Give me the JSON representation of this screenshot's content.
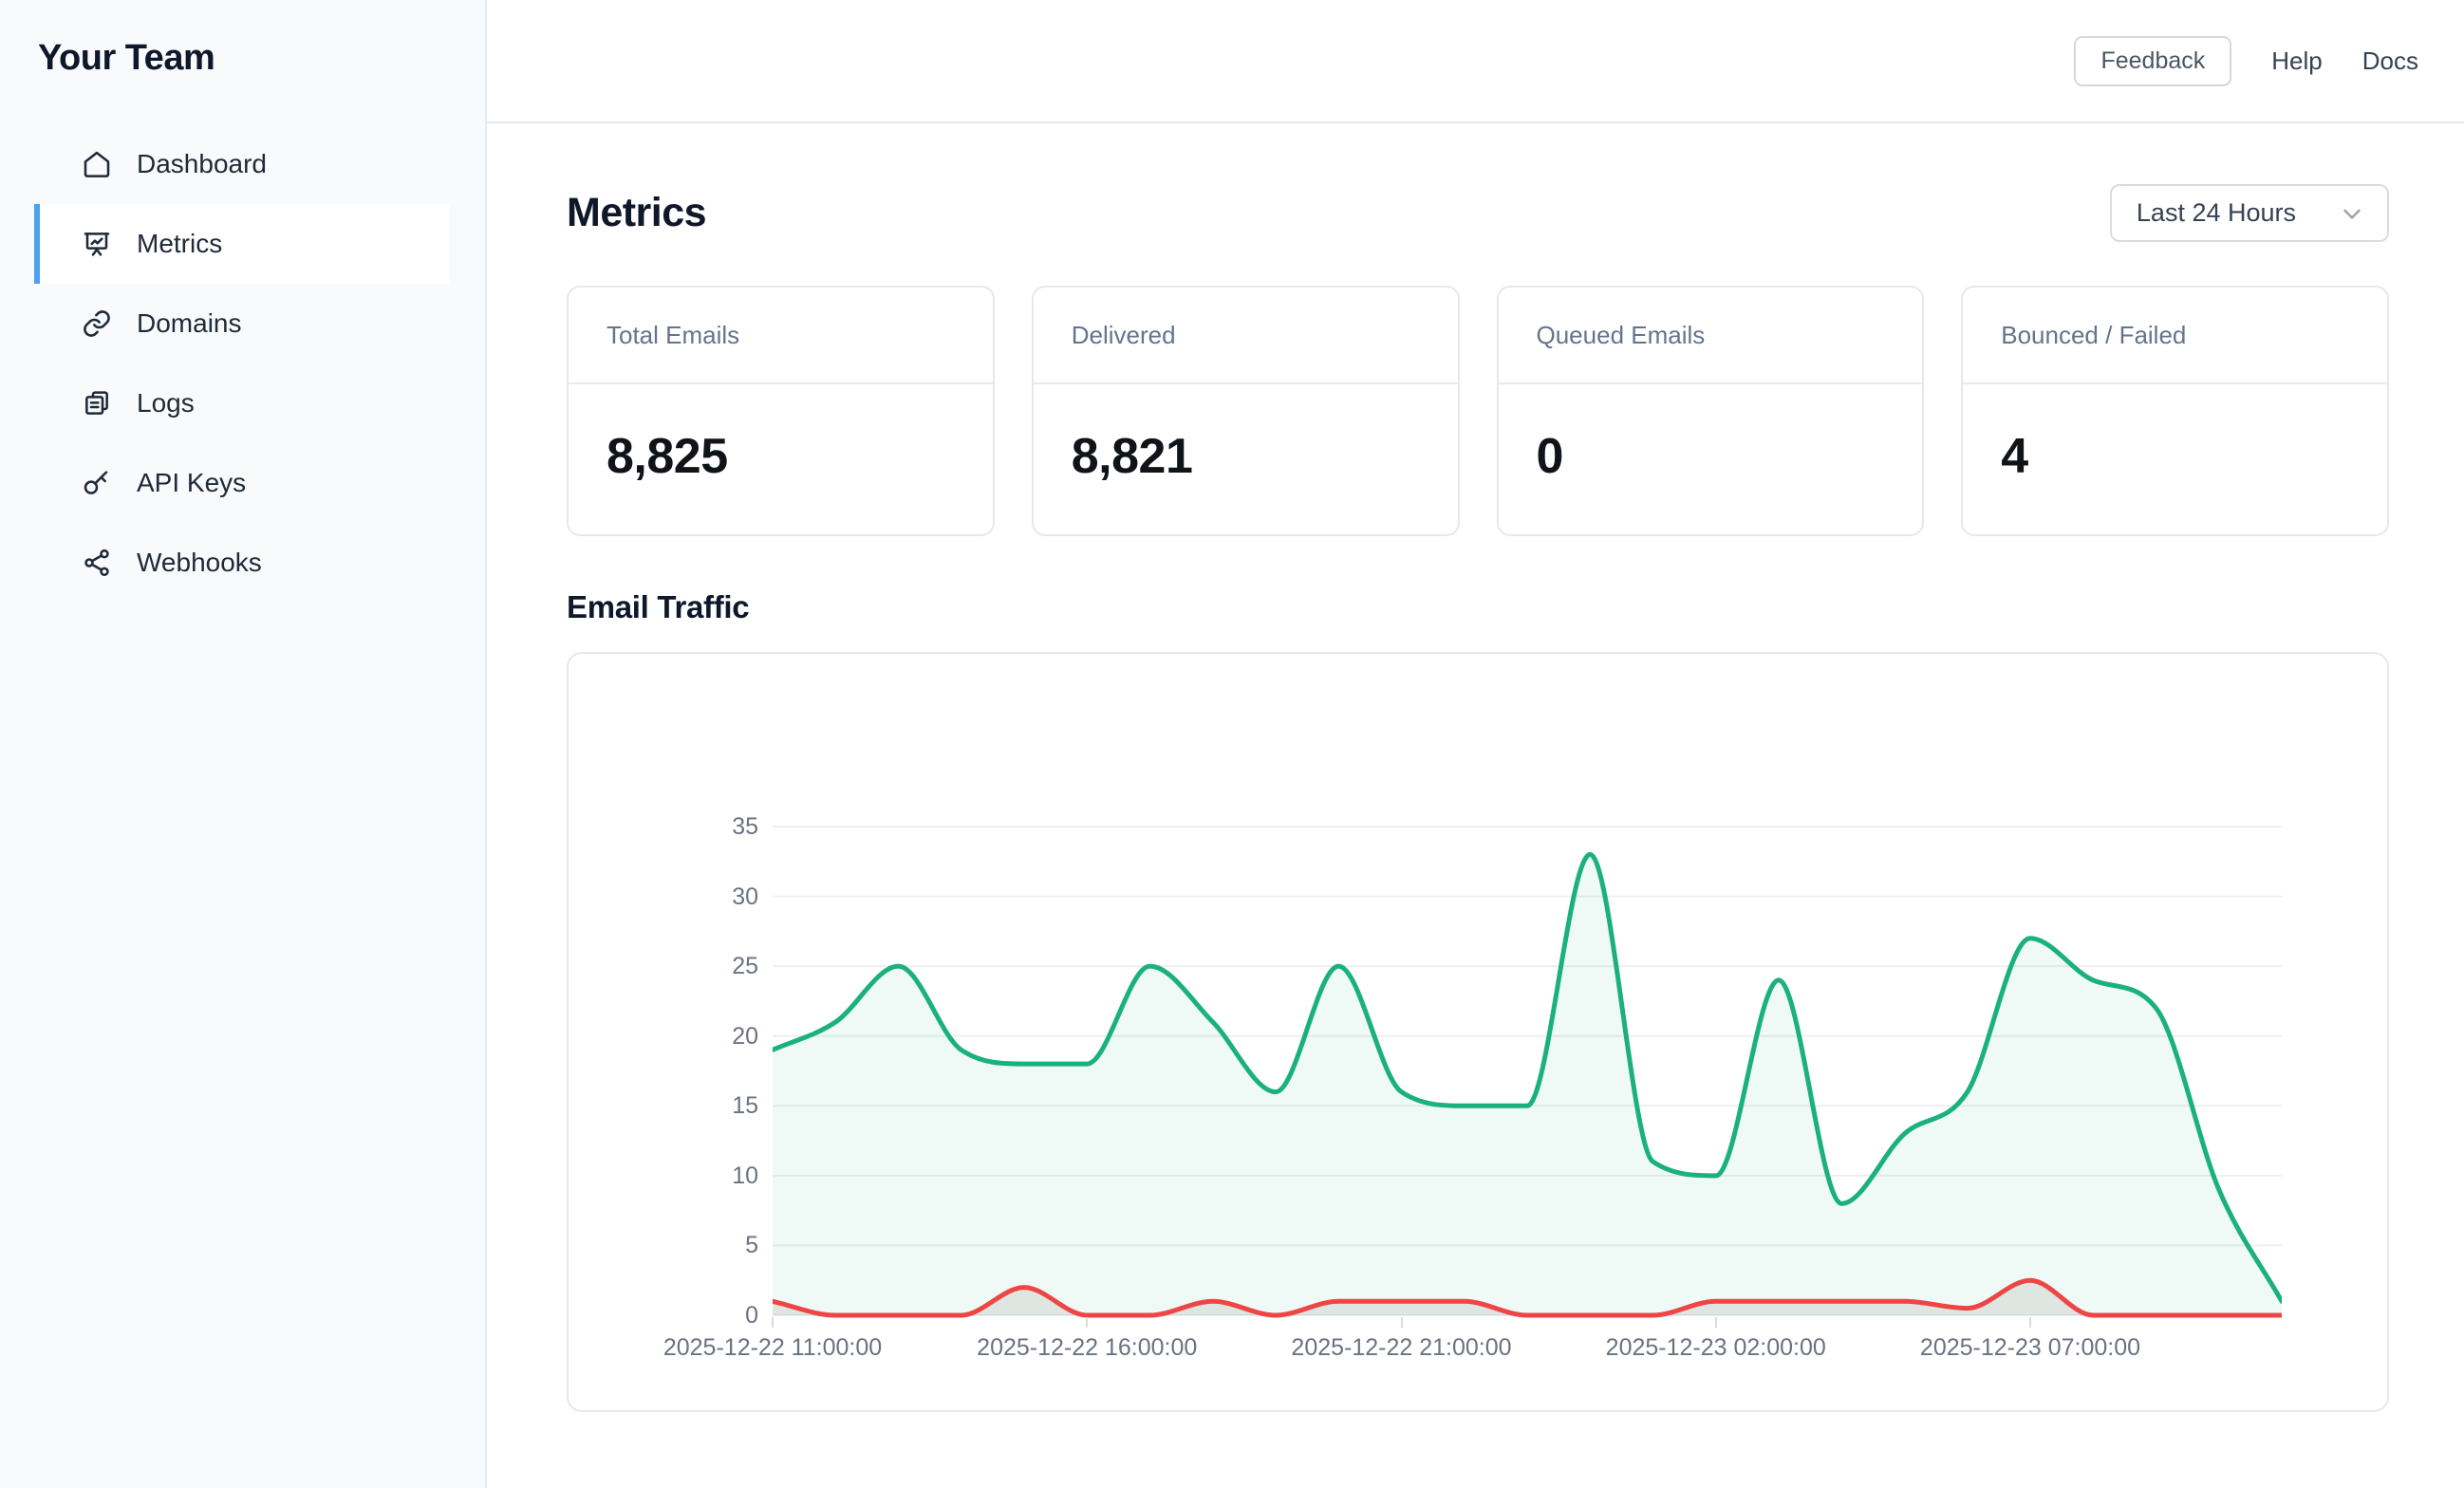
{
  "sidebar": {
    "team_name": "Your Team",
    "items": [
      {
        "label": "Dashboard",
        "icon": "home-icon"
      },
      {
        "label": "Metrics",
        "icon": "presentation-chart-icon"
      },
      {
        "label": "Domains",
        "icon": "link-icon"
      },
      {
        "label": "Logs",
        "icon": "logs-icon"
      },
      {
        "label": "API Keys",
        "icon": "key-icon"
      },
      {
        "label": "Webhooks",
        "icon": "share-icon"
      }
    ]
  },
  "topbar": {
    "feedback_label": "Feedback",
    "help_label": "Help",
    "docs_label": "Docs"
  },
  "metrics": {
    "title": "Metrics",
    "time_range": "Last 24 Hours"
  },
  "stats": [
    {
      "label": "Total Emails",
      "value": "8,825"
    },
    {
      "label": "Delivered",
      "value": "8,821"
    },
    {
      "label": "Queued Emails",
      "value": "0"
    },
    {
      "label": "Bounced / Failed",
      "value": "4"
    }
  ],
  "chart_section": {
    "title": "Email Traffic"
  },
  "chart_data": {
    "type": "line",
    "title": "Email Traffic",
    "x_unit": "hour",
    "x_start": "2025-12-22 11:00:00",
    "x_end": "2025-12-23 11:00:00",
    "x_tick_hours": [
      0,
      5,
      10,
      15,
      20
    ],
    "x_tick_labels": [
      "2025-12-22 11:00:00",
      "2025-12-22 16:00:00",
      "2025-12-22 21:00:00",
      "2025-12-23 02:00:00",
      "2025-12-23 07:00:00"
    ],
    "ylim": [
      0,
      35
    ],
    "yticks": [
      0,
      5,
      10,
      15,
      20,
      25,
      30,
      35
    ],
    "grid": "horizontal",
    "legend_position": "none",
    "smoothing": "monotone",
    "series": [
      {
        "name": "Delivered",
        "line_color": "#1bb17c",
        "fill_color": "rgba(27,177,124,0.07)",
        "values": [
          19,
          21,
          25,
          19,
          18,
          18,
          25,
          21,
          16,
          25,
          16,
          15,
          15,
          33,
          11,
          10,
          24,
          8,
          13,
          16,
          27,
          24,
          22,
          9,
          1
        ]
      },
      {
        "name": "Bounced / Failed",
        "line_color": "#ee4545",
        "fill_color": "rgba(138,130,118,0.16)",
        "values": [
          1,
          0,
          0,
          0,
          2,
          0,
          0,
          1,
          0,
          1,
          1,
          1,
          0,
          0,
          0,
          1,
          1,
          1,
          1,
          0.5,
          2.5,
          0,
          0,
          0,
          0
        ]
      }
    ]
  }
}
